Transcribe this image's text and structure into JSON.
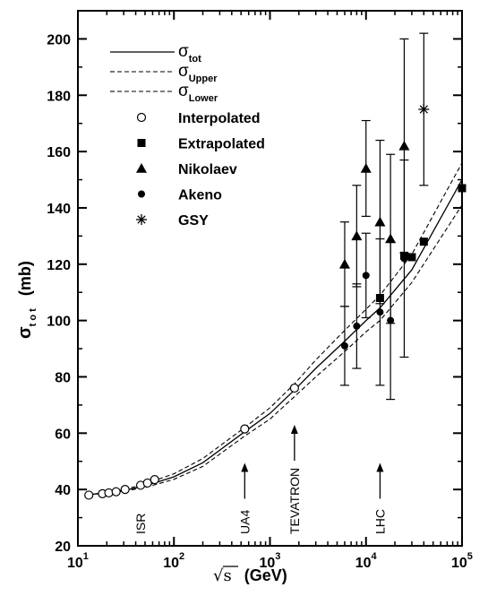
{
  "chart_data": {
    "type": "scatter",
    "xlabel": "(GeV)",
    "xlabel_symbol": "√s",
    "ylabel_symbol": "σ",
    "ylabel_sub": "t o t",
    "ylabel_unit": "(mb)",
    "xscale": "log",
    "xlim": [
      10,
      100000
    ],
    "ylim": [
      20,
      210
    ],
    "x_ticks": [
      {
        "value": 10,
        "base": "10",
        "exp": "1"
      },
      {
        "value": 100,
        "base": "10",
        "exp": "2"
      },
      {
        "value": 1000,
        "base": "10",
        "exp": "3"
      },
      {
        "value": 10000,
        "base": "10",
        "exp": "4"
      },
      {
        "value": 100000,
        "base": "10",
        "exp": "5"
      }
    ],
    "y_ticks": [
      20,
      40,
      60,
      80,
      100,
      120,
      140,
      160,
      180,
      200
    ],
    "grid": false,
    "legend_position": "top-left",
    "curves": [
      {
        "name": "σ",
        "sub": "tot",
        "style": "solid",
        "x": [
          13,
          20,
          30,
          50,
          100,
          200,
          546,
          1000,
          1800,
          3000,
          6000,
          10000,
          14000,
          30000,
          100000
        ],
        "y": [
          38.2,
          38.8,
          39.6,
          41.3,
          44.5,
          49.5,
          60.5,
          67.0,
          75.3,
          83.0,
          92.7,
          100.0,
          104.5,
          118.0,
          150.0
        ]
      },
      {
        "name": "σ",
        "sub": "Upper",
        "style": "dashed",
        "x": [
          13,
          20,
          30,
          50,
          100,
          200,
          546,
          1000,
          1800,
          3000,
          6000,
          10000,
          14000,
          30000,
          100000
        ],
        "y": [
          38.2,
          38.9,
          39.9,
          42.0,
          45.6,
          51.0,
          62.0,
          69.0,
          77.5,
          86.0,
          96.5,
          104.0,
          109.0,
          123.5,
          156.0
        ]
      },
      {
        "name": "σ",
        "sub": "Lower",
        "style": "dashed",
        "x": [
          13,
          20,
          30,
          50,
          100,
          200,
          546,
          1000,
          1800,
          3000,
          6000,
          10000,
          14000,
          30000,
          100000
        ],
        "y": [
          38.2,
          38.7,
          39.4,
          40.7,
          43.6,
          48.2,
          59.0,
          65.0,
          73.0,
          80.0,
          89.0,
          96.0,
          100.0,
          113.5,
          141.0
        ]
      }
    ],
    "series": [
      {
        "name": "Interpolated",
        "marker": "open-circle",
        "points": [
          {
            "x": 13,
            "y": 38.0
          },
          {
            "x": 18,
            "y": 38.5
          },
          {
            "x": 21,
            "y": 38.8
          },
          {
            "x": 25,
            "y": 39.2
          },
          {
            "x": 31,
            "y": 40.0
          },
          {
            "x": 45,
            "y": 41.5
          },
          {
            "x": 53,
            "y": 42.3
          },
          {
            "x": 63,
            "y": 43.5
          },
          {
            "x": 546,
            "y": 61.5
          },
          {
            "x": 1800,
            "y": 76.0
          }
        ]
      },
      {
        "name": "Extrapolated",
        "marker": "filled-square",
        "points": [
          {
            "x": 14000,
            "y": 108
          },
          {
            "x": 25000,
            "y": 123
          },
          {
            "x": 30000,
            "y": 122.5
          },
          {
            "x": 40000,
            "y": 128
          },
          {
            "x": 100000,
            "y": 147
          }
        ]
      },
      {
        "name": "Nikolaev",
        "marker": "filled-triangle",
        "points": [
          {
            "x": 6000,
            "y": 120,
            "err": 15
          },
          {
            "x": 8000,
            "y": 130,
            "err": 18
          },
          {
            "x": 10000,
            "y": 154,
            "err": 17
          },
          {
            "x": 14000,
            "y": 135,
            "err": 29
          },
          {
            "x": 18000,
            "y": 129,
            "err": 30
          },
          {
            "x": 25000,
            "y": 162,
            "err": 38
          }
        ]
      },
      {
        "name": "Akeno",
        "marker": "filled-circle",
        "points": [
          {
            "x": 6000,
            "y": 91,
            "err": 14
          },
          {
            "x": 8000,
            "y": 98,
            "err": 15
          },
          {
            "x": 10000,
            "y": 116,
            "err": 15
          },
          {
            "x": 14000,
            "y": 103,
            "err": 26
          },
          {
            "x": 18000,
            "y": 100,
            "err": 28
          },
          {
            "x": 25000,
            "y": 122,
            "err": 35
          }
        ]
      },
      {
        "name": "GSY",
        "marker": "asterisk",
        "points": [
          {
            "x": 40000,
            "y": 175,
            "err": 27
          }
        ]
      }
    ],
    "annotations": [
      {
        "label": "ISR",
        "x": 45,
        "y": 22,
        "arrow": false
      },
      {
        "label": "UA4",
        "x": 546,
        "y": 22,
        "arrow": true
      },
      {
        "label": "TEVATRON",
        "x": 1800,
        "y": 22,
        "arrow": true
      },
      {
        "label": "LHC",
        "x": 14000,
        "y": 22,
        "arrow": true
      }
    ]
  }
}
